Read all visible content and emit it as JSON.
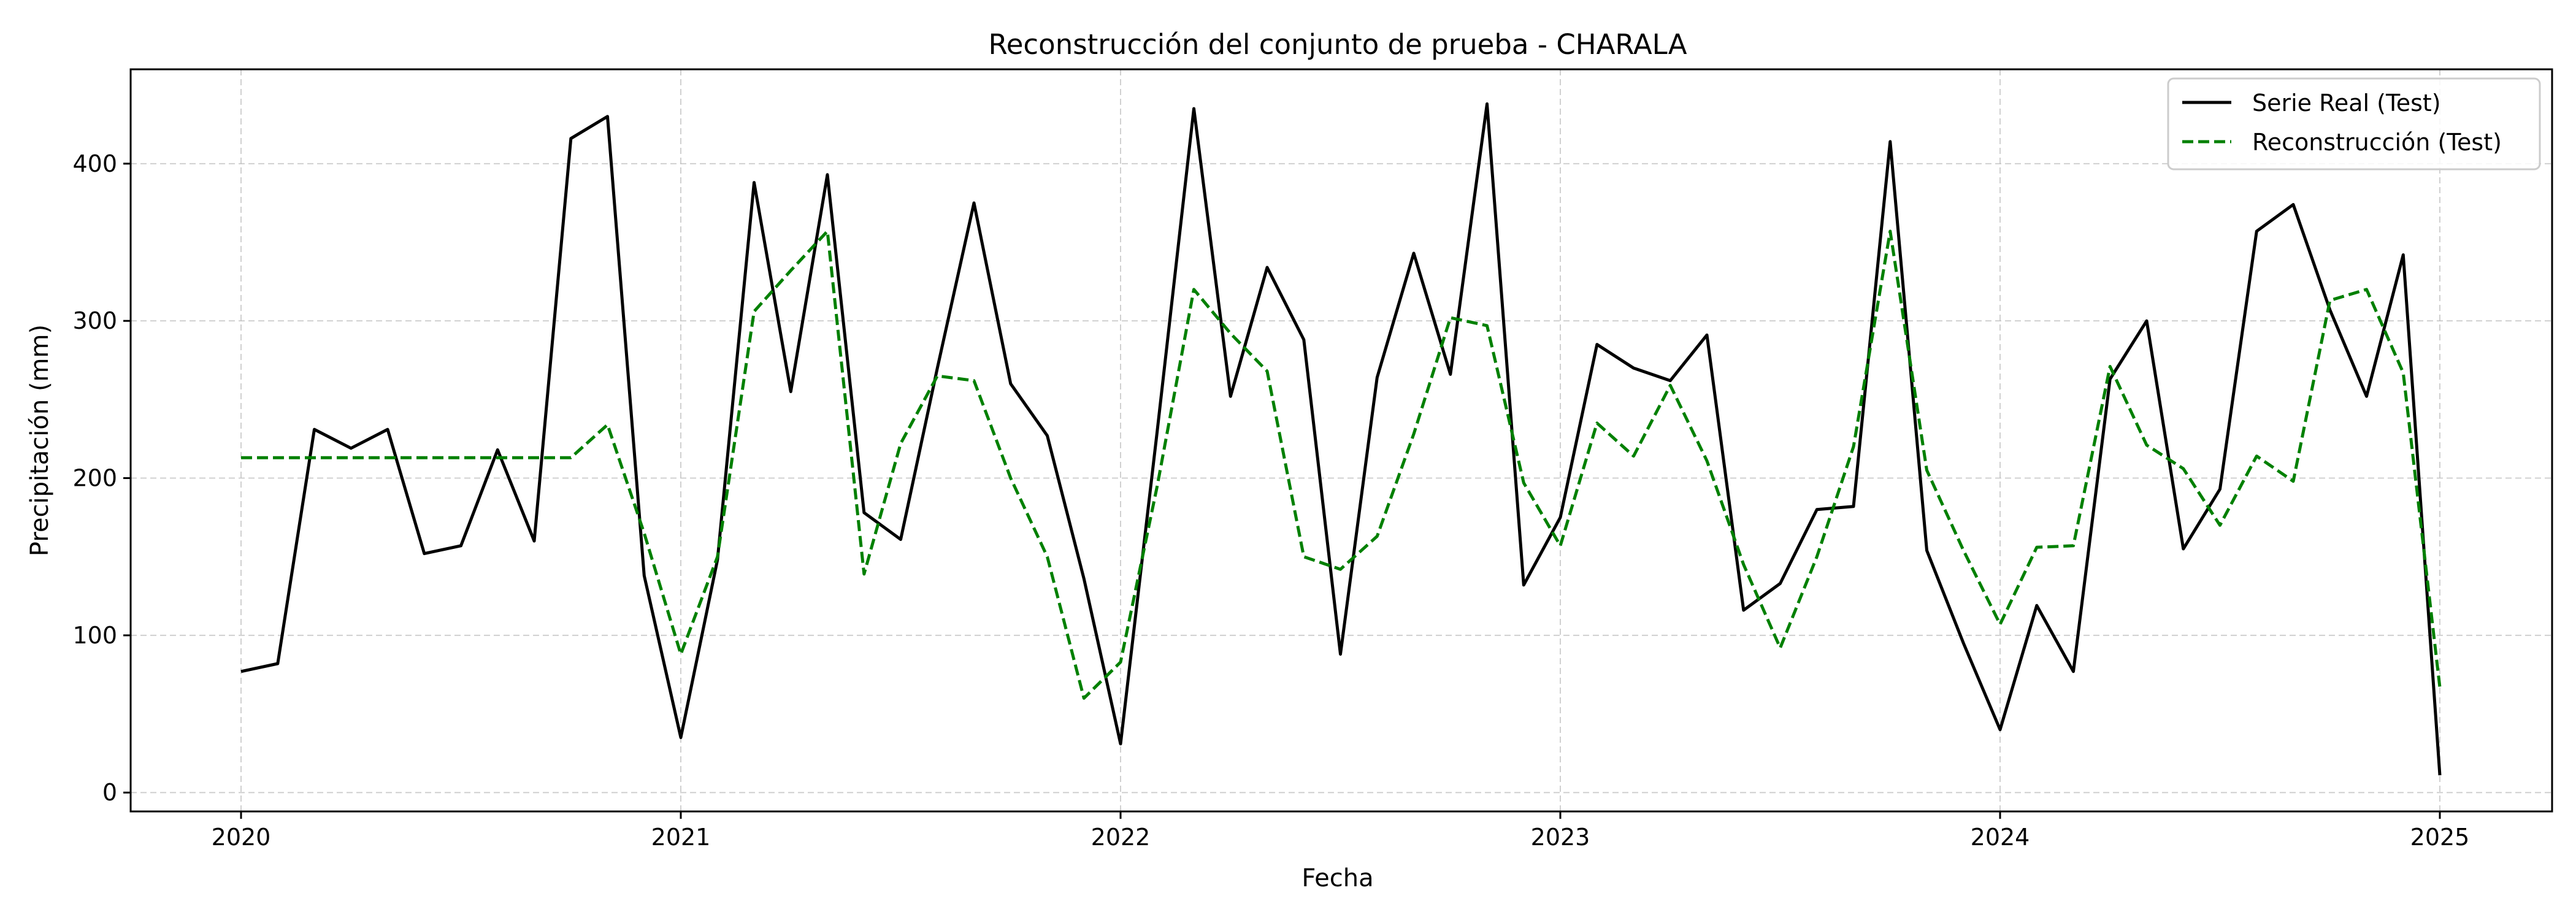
{
  "chart_data": {
    "type": "line",
    "title": "Reconstrucción del conjunto de prueba - CHARALA",
    "xlabel": "Fecha",
    "ylabel": "Precipitación (mm)",
    "x": [
      "2020-01",
      "2020-02",
      "2020-03",
      "2020-04",
      "2020-05",
      "2020-06",
      "2020-07",
      "2020-08",
      "2020-09",
      "2020-10",
      "2020-11",
      "2020-12",
      "2021-01",
      "2021-02",
      "2021-03",
      "2021-04",
      "2021-05",
      "2021-06",
      "2021-07",
      "2021-08",
      "2021-09",
      "2021-10",
      "2021-11",
      "2021-12",
      "2022-01",
      "2022-02",
      "2022-03",
      "2022-04",
      "2022-05",
      "2022-06",
      "2022-07",
      "2022-08",
      "2022-09",
      "2022-10",
      "2022-11",
      "2022-12",
      "2023-01",
      "2023-02",
      "2023-03",
      "2023-04",
      "2023-05",
      "2023-06",
      "2023-07",
      "2023-08",
      "2023-09",
      "2023-10",
      "2023-11",
      "2023-12",
      "2024-01",
      "2024-02",
      "2024-03",
      "2024-04",
      "2024-05",
      "2024-06",
      "2024-07",
      "2024-08",
      "2024-09",
      "2024-10",
      "2024-11",
      "2024-12",
      "2025-01"
    ],
    "xticks": [
      "2020",
      "2021",
      "2022",
      "2023",
      "2024",
      "2025"
    ],
    "yticks": [
      0,
      100,
      200,
      300,
      400
    ],
    "ylim": [
      -12,
      460
    ],
    "grid": true,
    "legend_position": "top-right",
    "series": [
      {
        "name": "Serie Real (Test)",
        "color": "#000000",
        "style": "solid",
        "values": [
          77,
          82,
          231,
          219,
          231,
          152,
          157,
          218,
          160,
          416,
          430,
          138,
          35,
          148,
          388,
          255,
          393,
          178,
          161,
          270,
          375,
          260,
          227,
          136,
          31,
          230,
          435,
          252,
          334,
          288,
          88,
          264,
          343,
          266,
          438,
          132,
          175,
          285,
          270,
          262,
          291,
          116,
          133,
          180,
          182,
          414,
          154,
          95,
          40,
          119,
          77,
          263,
          300,
          155,
          193,
          357,
          374,
          307,
          252,
          342,
          11
        ]
      },
      {
        "name": "Reconstrucción (Test)",
        "color": "#008000",
        "style": "dashed",
        "values": [
          213,
          213,
          213,
          213,
          213,
          213,
          213,
          213,
          213,
          213,
          234,
          165,
          88,
          150,
          306,
          332,
          357,
          139,
          222,
          265,
          262,
          200,
          150,
          60,
          83,
          195,
          320,
          292,
          268,
          150,
          142,
          163,
          228,
          302,
          297,
          197,
          157,
          235,
          214,
          259,
          211,
          145,
          92,
          150,
          220,
          357,
          205,
          154,
          107,
          156,
          157,
          271,
          221,
          206,
          170,
          214,
          198,
          313,
          320,
          267,
          67
        ]
      }
    ]
  }
}
